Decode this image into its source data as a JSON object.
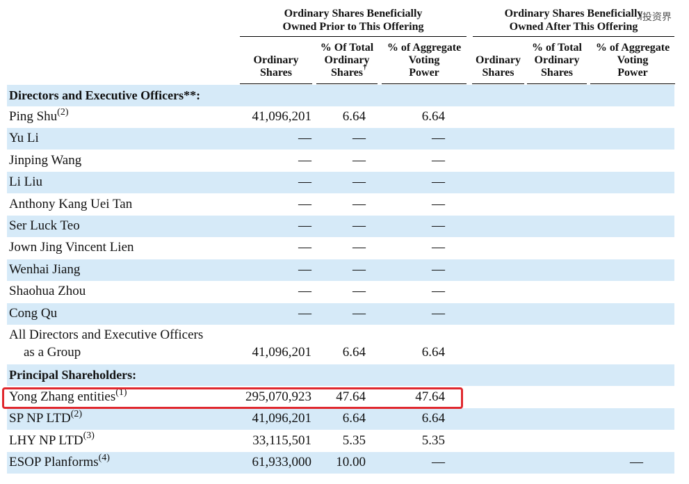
{
  "header": {
    "group_prior_line1": "Ordinary Shares Beneficially",
    "group_prior_line2": "Owned Prior to This Offering",
    "group_after_line1": "Ordinary Shares Beneficially",
    "group_after_line2": "Owned After This Offering",
    "col_shares_l1": "Ordinary",
    "col_shares_l2": "Shares",
    "col_pct_total_prior_l1": "% Of Total",
    "col_pct_total_prior_l2": "Ordinary",
    "col_pct_total_prior_l3": "Shares",
    "col_pct_voting_l1": "% of Aggregate",
    "col_pct_voting_l2": "Voting",
    "col_pct_voting_l3": "Power",
    "col_after_shares_l1": "Ordinary",
    "col_after_shares_l2": "Shares",
    "col_pct_total_after_l1": "% of Total",
    "col_pct_total_after_l2": "Ordinary",
    "col_pct_total_after_l3": "Shares",
    "col_after_voting_l1": "% of Aggregate",
    "col_after_voting_l2": "Voting",
    "col_after_voting_l3": "Power",
    "dagger": "†"
  },
  "watermark": "i投资界",
  "sections": {
    "directors_label": "Directors and Executive Officers**:",
    "principal_label": "Principal Shareholders:"
  },
  "rows": [
    {
      "name": "Ping Shu",
      "note": "(2)",
      "shares": "41,096,201",
      "pct_total": "6.64",
      "pct_voting": "6.64"
    },
    {
      "name": "Yu Li",
      "note": "",
      "shares": "—",
      "pct_total": "—",
      "pct_voting": "—"
    },
    {
      "name": "Jinping Wang",
      "note": "",
      "shares": "—",
      "pct_total": "—",
      "pct_voting": "—"
    },
    {
      "name": "Li Liu",
      "note": "",
      "shares": "—",
      "pct_total": "—",
      "pct_voting": "—"
    },
    {
      "name": "Anthony Kang Uei Tan",
      "note": "",
      "shares": "—",
      "pct_total": "—",
      "pct_voting": "—"
    },
    {
      "name": "Ser Luck Teo",
      "note": "",
      "shares": "—",
      "pct_total": "—",
      "pct_voting": "—"
    },
    {
      "name": "Jown Jing Vincent Lien",
      "note": "",
      "shares": "—",
      "pct_total": "—",
      "pct_voting": "—"
    },
    {
      "name": "Wenhai Jiang",
      "note": "",
      "shares": "—",
      "pct_total": "—",
      "pct_voting": "—"
    },
    {
      "name": "Shaohua Zhou",
      "note": "",
      "shares": "—",
      "pct_total": "—",
      "pct_voting": "—"
    },
    {
      "name": "Cong Qu",
      "note": "",
      "shares": "—",
      "pct_total": "—",
      "pct_voting": "—"
    }
  ],
  "group_row": {
    "name_line1": "All Directors and Executive Officers",
    "name_line2": "as a Group",
    "shares": "41,096,201",
    "pct_total": "6.64",
    "pct_voting": "6.64"
  },
  "principal_rows": [
    {
      "name": "Yong Zhang entities",
      "note": "(1)",
      "shares": "295,070,923",
      "pct_total": "47.64",
      "pct_voting": "47.64"
    },
    {
      "name": "SP NP LTD",
      "note": "(2)",
      "shares": "41,096,201",
      "pct_total": "6.64",
      "pct_voting": "6.64"
    },
    {
      "name": "LHY NP LTD",
      "note": "(3)",
      "shares": "33,115,501",
      "pct_total": "5.35",
      "pct_voting": "5.35"
    },
    {
      "name": "ESOP Planforms",
      "note": "(4)",
      "shares": "61,933,000",
      "pct_total": "10.00",
      "pct_voting": "—",
      "after_voting": "—"
    }
  ]
}
